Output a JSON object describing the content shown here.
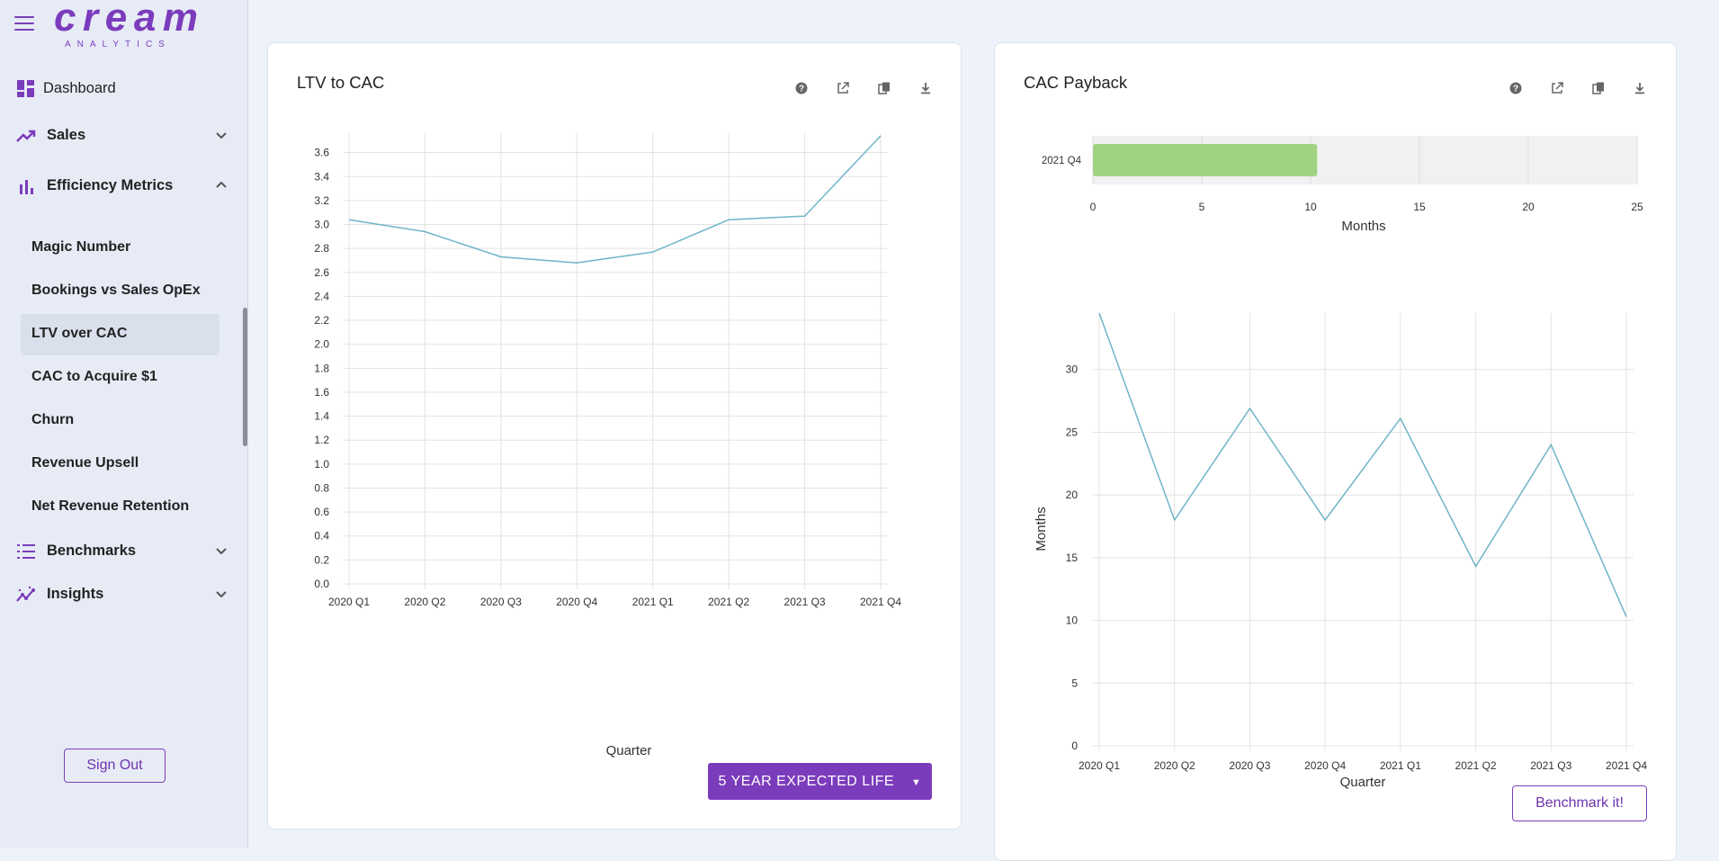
{
  "brand": {
    "logo_text": "cream",
    "logo_sub": "ANALYTICS",
    "accent": "#7b3cbc"
  },
  "sidebar": {
    "items": [
      {
        "label": "Dashboard",
        "icon": "dashboard-icon"
      },
      {
        "label": "Sales",
        "icon": "trending-up-icon"
      },
      {
        "label": "Efficiency Metrics",
        "icon": "bar-chart-icon"
      },
      {
        "label": "Benchmarks",
        "icon": "list-icon"
      },
      {
        "label": "Insights",
        "icon": "insights-icon"
      }
    ],
    "sub_items": [
      {
        "label": "Magic Number"
      },
      {
        "label": "Bookings vs Sales OpEx"
      },
      {
        "label": "LTV over CAC",
        "active": true
      },
      {
        "label": "CAC to Acquire $1"
      },
      {
        "label": "Churn"
      },
      {
        "label": "Revenue Upsell"
      },
      {
        "label": "Net Revenue Retention"
      }
    ],
    "sign_out": "Sign Out"
  },
  "toolbar_icons": [
    "help-icon",
    "open-external-icon",
    "copy-icon",
    "download-icon"
  ],
  "ltv_card": {
    "title": "LTV to CAC",
    "dropdown_label": "5 YEAR EXPECTED LIFE",
    "dropdown_arrow": "▼"
  },
  "cac_card": {
    "title": "CAC Payback",
    "benchmark_label": "Benchmark it!"
  },
  "chart_data": [
    {
      "type": "line",
      "title": "LTV to CAC",
      "xlabel": "Quarter",
      "ylabel": "",
      "categories": [
        "2020 Q1",
        "2020 Q2",
        "2020 Q3",
        "2020 Q4",
        "2021 Q1",
        "2021 Q2",
        "2021 Q3",
        "2021 Q4"
      ],
      "series": [
        {
          "values": [
            3.04,
            2.94,
            2.73,
            2.68,
            2.77,
            3.04,
            3.07,
            3.74
          ]
        }
      ],
      "ylim": [
        0,
        3.74
      ],
      "yticks": [
        "0.0",
        "0.2",
        "0.4",
        "0.6",
        "0.8",
        "1.0",
        "1.2",
        "1.4",
        "1.6",
        "1.8",
        "2.0",
        "2.2",
        "2.4",
        "2.6",
        "2.8",
        "3.0",
        "3.2",
        "3.4",
        "3.6"
      ],
      "grid": true,
      "line_color": "#6fb4c8"
    },
    {
      "type": "bar",
      "orientation": "horizontal",
      "title": "CAC Payback",
      "xlabel": "Months",
      "categories": [
        "2021 Q4"
      ],
      "values": [
        10.3
      ],
      "xlim": [
        0,
        25
      ],
      "xticks": [
        "0",
        "5",
        "10",
        "15",
        "20",
        "25"
      ],
      "grid": true,
      "bar_color": "#a0d283"
    },
    {
      "type": "line",
      "title": "CAC Payback",
      "xlabel": "Quarter",
      "ylabel": "Months",
      "categories": [
        "2020 Q1",
        "2020 Q2",
        "2020 Q3",
        "2020 Q4",
        "2021 Q1",
        "2021 Q2",
        "2021 Q3",
        "2021 Q4"
      ],
      "series": [
        {
          "values": [
            34.5,
            18.0,
            26.9,
            18.0,
            26.1,
            14.3,
            24.0,
            10.3
          ]
        }
      ],
      "ylim": [
        0,
        34.5
      ],
      "yticks": [
        "0",
        "5",
        "10",
        "15",
        "20",
        "25",
        "30"
      ],
      "grid": true,
      "line_color": "#6fb4c8"
    }
  ]
}
